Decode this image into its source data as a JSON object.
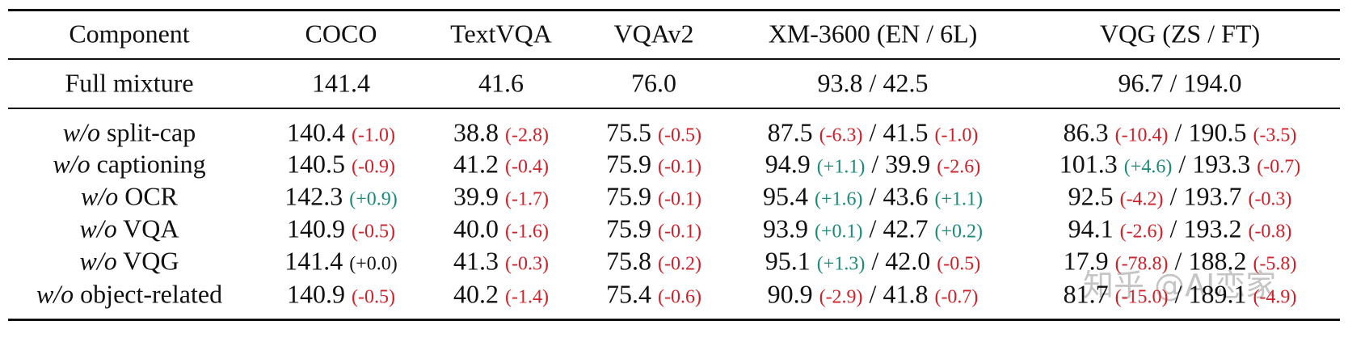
{
  "table": {
    "header": [
      "Component",
      "COCO",
      "TextVQA",
      "VQAv2",
      "XM-3600 (EN / 6L)",
      "VQG (ZS / FT)"
    ],
    "full": {
      "label": "Full mixture",
      "cells": [
        [
          "141.4"
        ],
        [
          "41.6"
        ],
        [
          "76.0"
        ],
        [
          "93.8 / 42.5"
        ],
        [
          "96.7 / 194.0"
        ]
      ]
    },
    "rows": [
      {
        "prefix": "w/o",
        "label": "split-cap",
        "cells": [
          [
            "140.4",
            "(-1.0)"
          ],
          [
            "38.8",
            "(-2.8)"
          ],
          [
            "75.5",
            "(-0.5)"
          ],
          [
            "87.5",
            "(-6.3)",
            "/",
            "41.5",
            "(-1.0)"
          ],
          [
            "86.3",
            "(-10.4)",
            "/",
            "190.5",
            "(-3.5)"
          ]
        ]
      },
      {
        "prefix": "w/o",
        "label": "captioning",
        "cells": [
          [
            "140.5",
            "(-0.9)"
          ],
          [
            "41.2",
            "(-0.4)"
          ],
          [
            "75.9",
            "(-0.1)"
          ],
          [
            "94.9",
            "(+1.1)",
            "/",
            "39.9",
            "(-2.6)"
          ],
          [
            "101.3",
            "(+4.6)",
            "/",
            "193.3",
            "(-0.7)"
          ]
        ]
      },
      {
        "prefix": "w/o",
        "label": "OCR",
        "cells": [
          [
            "142.3",
            "(+0.9)"
          ],
          [
            "39.9",
            "(-1.7)"
          ],
          [
            "75.9",
            "(-0.1)"
          ],
          [
            "95.4",
            "(+1.6)",
            "/",
            "43.6",
            "(+1.1)"
          ],
          [
            "92.5",
            "(-4.2)",
            "/",
            "193.7",
            "(-0.3)"
          ]
        ]
      },
      {
        "prefix": "w/o",
        "label": "VQA",
        "cells": [
          [
            "140.9",
            "(-0.5)"
          ],
          [
            "40.0",
            "(-1.6)"
          ],
          [
            "75.9",
            "(-0.1)"
          ],
          [
            "93.9",
            "(+0.1)",
            "/",
            "42.7",
            "(+0.2)"
          ],
          [
            "94.1",
            "(-2.6)",
            "/",
            "193.2",
            "(-0.8)"
          ]
        ]
      },
      {
        "prefix": "w/o",
        "label": "VQG",
        "cells": [
          [
            "141.4",
            "(+0.0)"
          ],
          [
            "41.3",
            "(-0.3)"
          ],
          [
            "75.8",
            "(-0.2)"
          ],
          [
            "95.1",
            "(+1.3)",
            "/",
            "42.0",
            "(-0.5)"
          ],
          [
            "17.9",
            "(-78.8)",
            "/",
            "188.2",
            "(-5.8)"
          ]
        ]
      },
      {
        "prefix": "w/o",
        "label": "object-related",
        "cells": [
          [
            "140.9",
            "(-0.5)"
          ],
          [
            "40.2",
            "(-1.4)"
          ],
          [
            "75.4",
            "(-0.6)"
          ],
          [
            "90.9",
            "(-2.9)",
            "/",
            "41.8",
            "(-0.7)"
          ],
          [
            "81.7",
            "(-15.0)",
            "/",
            "189.1",
            "(-4.9)"
          ]
        ]
      }
    ]
  },
  "watermark": "知乎 @AI恋家"
}
